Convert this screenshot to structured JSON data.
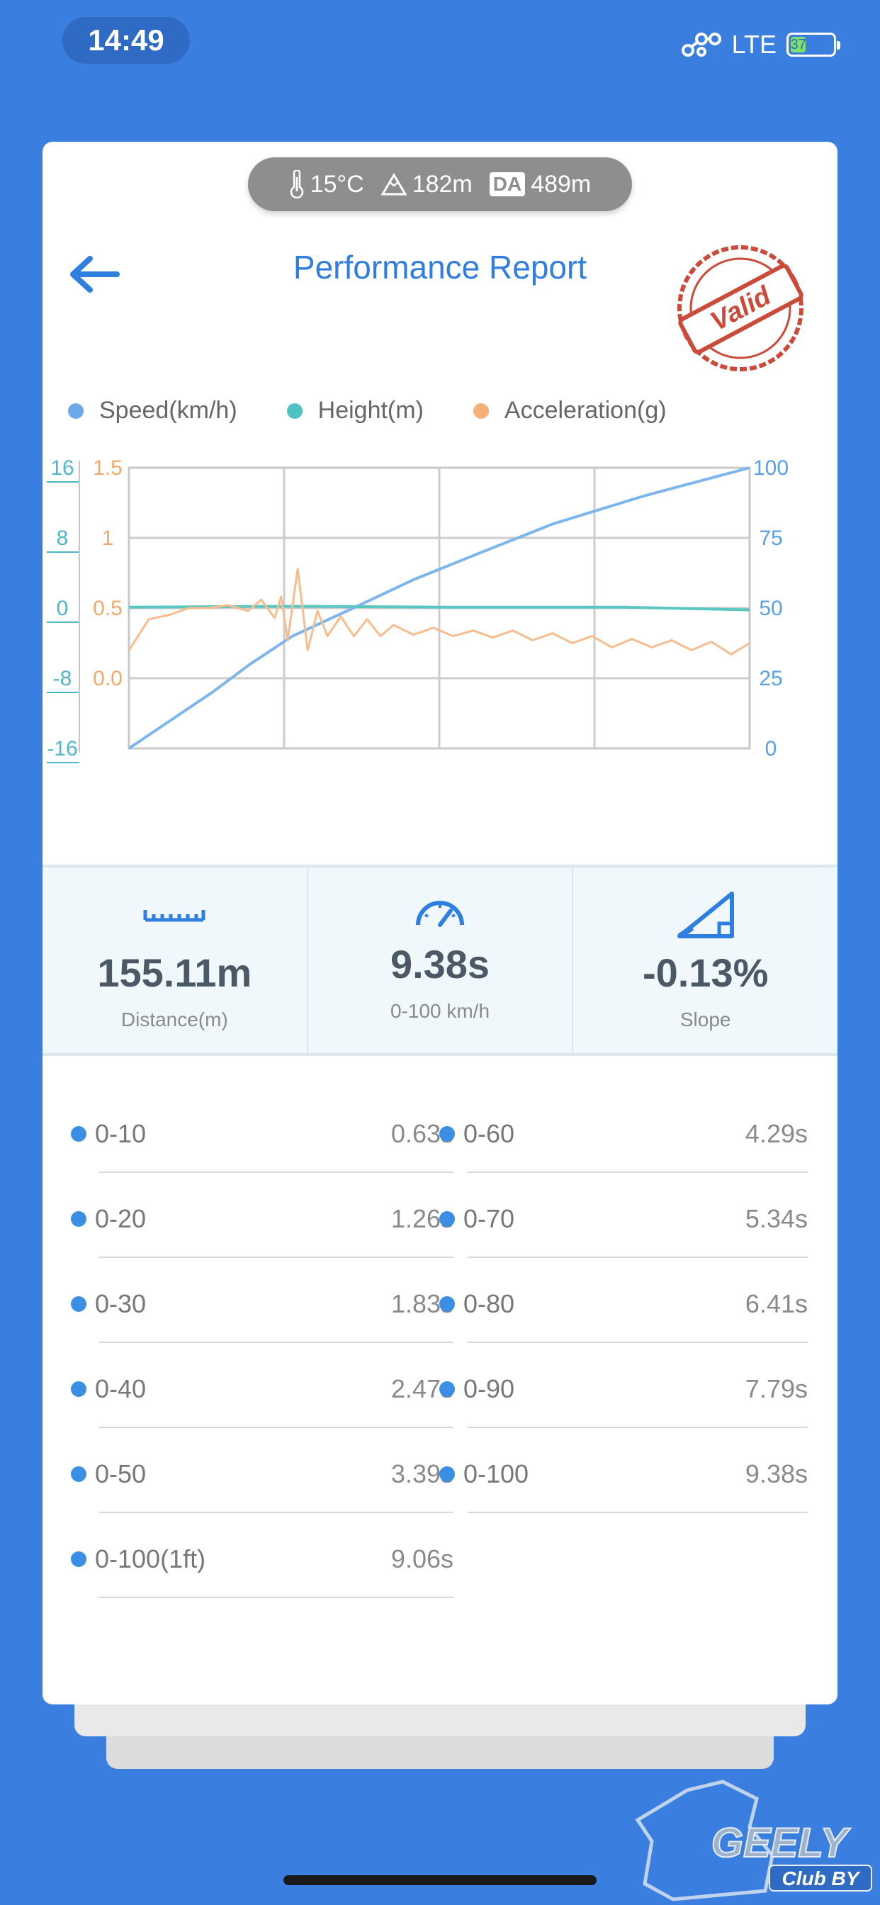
{
  "status_bar": {
    "time": "14:49",
    "network": "LTE",
    "battery": "37",
    "battery_level": 0.37
  },
  "environment": {
    "temperature": "15°C",
    "altitude": "182m",
    "da_label": "DA",
    "density_altitude": "489m"
  },
  "header": {
    "title": "Performance Report",
    "stamp_text": "Valid"
  },
  "legend": [
    {
      "label": "Speed(km/h)",
      "color": "#6aaaea"
    },
    {
      "label": "Height(m)",
      "color": "#4fc3c3"
    },
    {
      "label": "Acceleration(g)",
      "color": "#f5b07a"
    }
  ],
  "chart_data": {
    "type": "line",
    "axes": {
      "height": {
        "ticks": [
          "16",
          "8",
          "0",
          "-8",
          "-16"
        ],
        "range": [
          -16,
          16
        ],
        "color": "#4fb6c9"
      },
      "acceleration": {
        "ticks": [
          "1.5",
          "1",
          "0.5",
          "0.0"
        ],
        "range": [
          -0.5,
          1.5
        ],
        "color": "#f0a96a"
      },
      "speed": {
        "ticks": [
          "100",
          "75",
          "50",
          "25",
          "0"
        ],
        "range": [
          0,
          100
        ],
        "color": "#5aa0e8"
      }
    },
    "time_range": [
      0,
      9.38
    ],
    "series": [
      {
        "name": "Speed(km/h)",
        "axis": "speed",
        "color": "#7db6ec",
        "x": [
          0,
          0.63,
          1.26,
          1.83,
          2.47,
          3.39,
          4.29,
          5.34,
          6.41,
          7.79,
          9.38
        ],
        "y": [
          0,
          10,
          20,
          30,
          40,
          50,
          60,
          70,
          80,
          90,
          100
        ]
      },
      {
        "name": "Height(m)",
        "axis": "height",
        "color": "#5cc6c2",
        "x": [
          0,
          2.5,
          5,
          7.5,
          9.38
        ],
        "y": [
          0.1,
          0.2,
          0.1,
          0.1,
          -0.2
        ]
      },
      {
        "name": "Acceleration(g)",
        "axis": "acceleration",
        "color": "#f7bd8e",
        "x": [
          0,
          0.3,
          0.6,
          0.9,
          1.2,
          1.5,
          1.8,
          2.0,
          2.2,
          2.3,
          2.4,
          2.55,
          2.7,
          2.85,
          3.0,
          3.2,
          3.4,
          3.6,
          3.8,
          4.0,
          4.3,
          4.6,
          4.9,
          5.2,
          5.5,
          5.8,
          6.1,
          6.4,
          6.7,
          7.0,
          7.3,
          7.6,
          7.9,
          8.2,
          8.5,
          8.8,
          9.1,
          9.38
        ],
        "y": [
          0.2,
          0.42,
          0.45,
          0.5,
          0.5,
          0.52,
          0.48,
          0.56,
          0.43,
          0.58,
          0.27,
          0.78,
          0.2,
          0.48,
          0.3,
          0.44,
          0.3,
          0.42,
          0.3,
          0.38,
          0.31,
          0.36,
          0.3,
          0.34,
          0.29,
          0.34,
          0.27,
          0.32,
          0.25,
          0.3,
          0.22,
          0.28,
          0.22,
          0.27,
          0.2,
          0.26,
          0.17,
          0.25
        ]
      }
    ],
    "grid": true
  },
  "stats": [
    {
      "icon": "ruler-icon",
      "value": "155.11m",
      "label": "Distance(m)"
    },
    {
      "icon": "speedometer-icon",
      "value": "9.38s",
      "label": "0-100 km/h"
    },
    {
      "icon": "slope-icon",
      "value": "-0.13%",
      "label": "Slope"
    }
  ],
  "splits": [
    {
      "label": "0-10",
      "value": "0.63s"
    },
    {
      "label": "0-60",
      "value": "4.29s"
    },
    {
      "label": "0-20",
      "value": "1.26s"
    },
    {
      "label": "0-70",
      "value": "5.34s"
    },
    {
      "label": "0-30",
      "value": "1.83s"
    },
    {
      "label": "0-80",
      "value": "6.41s"
    },
    {
      "label": "0-40",
      "value": "2.47s"
    },
    {
      "label": "0-90",
      "value": "7.79s"
    },
    {
      "label": "0-50",
      "value": "3.39s"
    },
    {
      "label": "0-100",
      "value": "9.38s"
    },
    {
      "label": "0-100(1ft)",
      "value": "9.06s"
    }
  ],
  "watermark": {
    "brand": "GEELY",
    "sub": "Club BY"
  }
}
